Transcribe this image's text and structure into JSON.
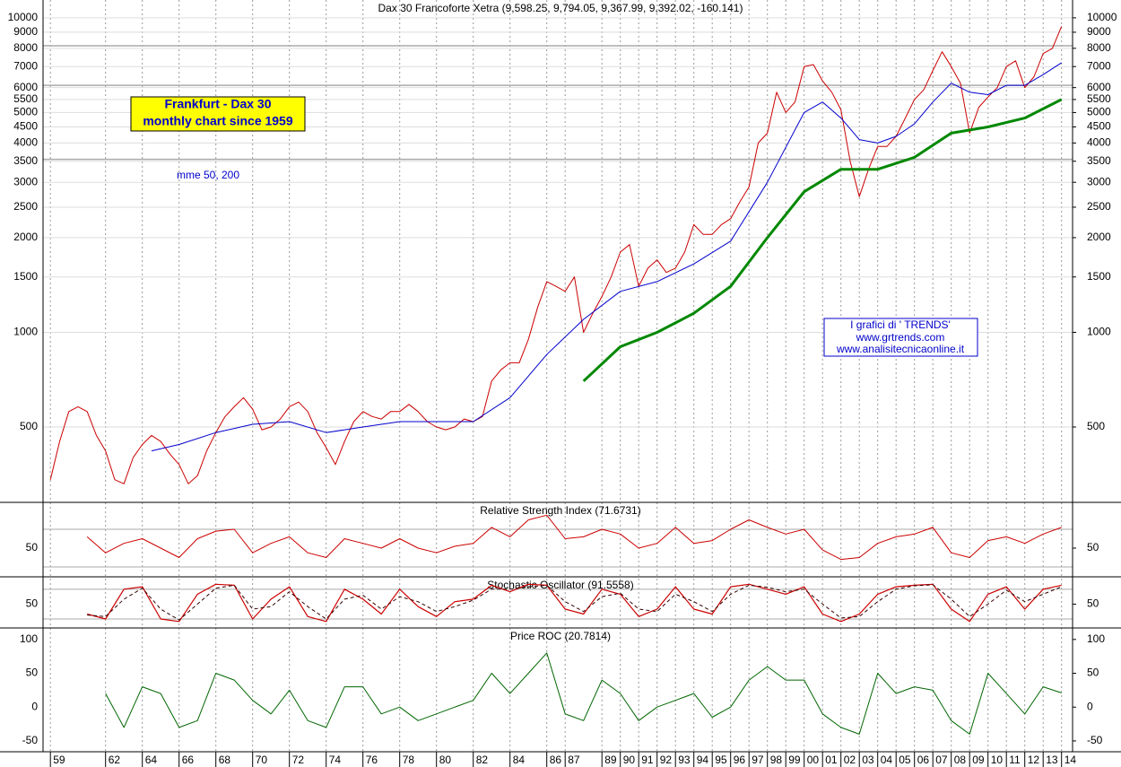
{
  "chart_data": [
    {
      "type": "line",
      "title": "Dax 30 Francoforte Xetra (9,598.25, 9,794.05, 9,367.99, 9,392.02, -160.141)",
      "log_scale": true,
      "grid": true,
      "ylim": [
        288,
        11100
      ],
      "yticks": [
        500,
        1000,
        1500,
        2000,
        2500,
        3000,
        3500,
        4000,
        4500,
        5000,
        5500,
        6000,
        7000,
        8000,
        9000,
        10000
      ],
      "levels": [
        8150,
        6100,
        3550
      ],
      "annotations": [
        "Frankfurt - Dax 30",
        "monthly  chart since 1959",
        "mme 50, 200",
        "I grafici di ' TRENDS'",
        "www.grtrends.com",
        "www.analisitecnicaonline.it"
      ],
      "series": [
        {
          "color": "#cc0000",
          "width": 1,
          "x": [
            1959,
            1959.5,
            1960,
            1960.5,
            1961,
            1961.5,
            1962,
            1962.5,
            1963,
            1963.5,
            1964,
            1964.5,
            1965,
            1965.5,
            1966,
            1966.5,
            1967,
            1967.5,
            1968,
            1968.5,
            1969,
            1969.5,
            1970,
            1970.5,
            1971,
            1971.5,
            1972,
            1972.5,
            1973,
            1973.5,
            1974,
            1974.5,
            1975,
            1975.5,
            1976,
            1976.5,
            1977,
            1977.5,
            1978,
            1978.5,
            1979,
            1979.5,
            1980,
            1980.5,
            1981,
            1981.5,
            1982,
            1982.5,
            1983,
            1983.5,
            1984,
            1984.5,
            1985,
            1985.5,
            1986,
            1986.5,
            1987,
            1987.5,
            1988,
            1988.5,
            1989,
            1989.5,
            1990,
            1990.5,
            1991,
            1991.5,
            1992,
            1992.5,
            1993,
            1993.5,
            1994,
            1994.5,
            1995,
            1995.5,
            1996,
            1996.5,
            1997,
            1997.5,
            1998,
            1998.5,
            1999,
            1999.5,
            2000,
            2000.5,
            2001,
            2001.5,
            2002,
            2002.5,
            2003,
            2003.5,
            2004,
            2004.5,
            2005,
            2005.5,
            2006,
            2006.5,
            2007,
            2007.5,
            2008,
            2008.5,
            2009,
            2009.5,
            2010,
            2010.5,
            2011,
            2011.5,
            2012,
            2012.5,
            2013,
            2013.5,
            2014
          ],
          "values": [
            340,
            450,
            560,
            580,
            560,
            470,
            420,
            340,
            330,
            400,
            440,
            470,
            450,
            410,
            380,
            330,
            350,
            420,
            480,
            540,
            580,
            620,
            570,
            490,
            500,
            530,
            580,
            600,
            560,
            480,
            430,
            380,
            450,
            520,
            560,
            540,
            530,
            560,
            560,
            590,
            560,
            520,
            500,
            490,
            500,
            530,
            520,
            540,
            700,
            760,
            800,
            800,
            950,
            1200,
            1450,
            1400,
            1350,
            1500,
            1000,
            1150,
            1300,
            1500,
            1800,
            1900,
            1400,
            1600,
            1700,
            1550,
            1600,
            1800,
            2200,
            2050,
            2050,
            2200,
            2300,
            2600,
            2900,
            4000,
            4300,
            5800,
            5000,
            5400,
            7000,
            7100,
            6300,
            5800,
            5100,
            3500,
            2700,
            3300,
            3900,
            3900,
            4200,
            4800,
            5500,
            5900,
            6800,
            7800,
            7000,
            6200,
            4300,
            5200,
            5600,
            6000,
            7000,
            7300,
            6000,
            6500,
            7700,
            8000,
            9392
          ]
        },
        {
          "color": "#0000cc",
          "width": 1,
          "x": [
            1964.5,
            1966,
            1968,
            1970,
            1972,
            1974,
            1976,
            1978,
            1980,
            1982,
            1984,
            1986,
            1988,
            1990,
            1992,
            1994,
            1996,
            1998,
            2000,
            2001,
            2002,
            2003,
            2004,
            2005,
            2006,
            2007,
            2008,
            2009,
            2010,
            2011,
            2012,
            2013,
            2014
          ],
          "values": [
            420,
            440,
            480,
            510,
            520,
            480,
            500,
            520,
            520,
            520,
            620,
            850,
            1100,
            1350,
            1450,
            1650,
            1950,
            3000,
            5000,
            5400,
            4800,
            4100,
            4000,
            4200,
            4600,
            5400,
            6200,
            5800,
            5700,
            6100,
            6100,
            6600,
            7200
          ]
        },
        {
          "color": "#008800",
          "width": 3,
          "x": [
            1988,
            1990,
            1992,
            1994,
            1996,
            1998,
            2000,
            2002,
            2004,
            2006,
            2008,
            2010,
            2012,
            2014
          ],
          "values": [
            700,
            900,
            1000,
            1150,
            1400,
            2000,
            2800,
            3300,
            3300,
            3600,
            4300,
            4500,
            4800,
            5500
          ]
        }
      ]
    },
    {
      "type": "line",
      "title": "Relative Strength Index (71.6731)",
      "ylim": [
        19.5,
        98.6
      ],
      "yticks": [
        50
      ],
      "levels": [
        30,
        70
      ],
      "series": [
        {
          "color": "#cc0000",
          "width": 1,
          "x": [
            1961,
            1962,
            1963,
            1964,
            1965,
            1966,
            1967,
            1968,
            1969,
            1970,
            1971,
            1972,
            1973,
            1974,
            1975,
            1976,
            1977,
            1978,
            1979,
            1980,
            1981,
            1982,
            1983,
            1984,
            1985,
            1986,
            1987,
            1988,
            1989,
            1990,
            1991,
            1992,
            1993,
            1994,
            1995,
            1996,
            1997,
            1998,
            1999,
            2000,
            2001,
            2002,
            2003,
            2004,
            2005,
            2006,
            2007,
            2008,
            2009,
            2010,
            2011,
            2012,
            2013,
            2014
          ],
          "values": [
            62,
            45,
            55,
            60,
            50,
            40,
            60,
            68,
            70,
            45,
            55,
            62,
            45,
            40,
            60,
            55,
            50,
            60,
            50,
            45,
            52,
            55,
            72,
            62,
            80,
            85,
            60,
            62,
            70,
            65,
            50,
            55,
            72,
            55,
            58,
            70,
            80,
            72,
            65,
            70,
            48,
            38,
            40,
            55,
            62,
            65,
            72,
            45,
            40,
            58,
            62,
            55,
            65,
            72
          ]
        }
      ]
    },
    {
      "type": "line",
      "title": "Stochastic Oscillator (91.5558)",
      "ylim": [
        2,
        105
      ],
      "yticks": [
        50
      ],
      "levels": [
        20,
        80
      ],
      "series": [
        {
          "color": "#cc0000",
          "width": 1.2,
          "x": [
            1961,
            1962,
            1963,
            1964,
            1965,
            1966,
            1967,
            1968,
            1969,
            1970,
            1971,
            1972,
            1973,
            1974,
            1975,
            1976,
            1977,
            1978,
            1979,
            1980,
            1981,
            1982,
            1983,
            1984,
            1985,
            1986,
            1987,
            1988,
            1989,
            1990,
            1991,
            1992,
            1993,
            1994,
            1995,
            1996,
            1997,
            1998,
            1999,
            2000,
            2001,
            2002,
            2003,
            2004,
            2005,
            2006,
            2007,
            2008,
            2009,
            2010,
            2011,
            2012,
            2013,
            2014
          ],
          "values": [
            30,
            20,
            80,
            85,
            20,
            15,
            70,
            90,
            88,
            20,
            60,
            85,
            25,
            15,
            80,
            60,
            30,
            80,
            45,
            25,
            55,
            60,
            88,
            75,
            90,
            88,
            40,
            30,
            80,
            70,
            25,
            40,
            85,
            40,
            30,
            85,
            90,
            80,
            70,
            85,
            30,
            15,
            30,
            70,
            85,
            88,
            90,
            40,
            15,
            70,
            85,
            40,
            80,
            88
          ]
        },
        {
          "color": "#330000",
          "width": 1,
          "dash": true,
          "x": [
            1961,
            1962,
            1963,
            1964,
            1965,
            1966,
            1967,
            1968,
            1969,
            1970,
            1971,
            1972,
            1973,
            1974,
            1975,
            1976,
            1977,
            1978,
            1979,
            1980,
            1981,
            1982,
            1983,
            1984,
            1985,
            1986,
            1987,
            1988,
            1989,
            1990,
            1991,
            1992,
            1993,
            1994,
            1995,
            1996,
            1997,
            1998,
            1999,
            2000,
            2001,
            2002,
            2003,
            2004,
            2005,
            2006,
            2007,
            2008,
            2009,
            2010,
            2011,
            2012,
            2013,
            2014
          ],
          "values": [
            28,
            25,
            60,
            82,
            40,
            18,
            50,
            82,
            88,
            40,
            45,
            75,
            45,
            20,
            60,
            68,
            40,
            65,
            55,
            35,
            45,
            58,
            80,
            80,
            85,
            88,
            55,
            35,
            65,
            72,
            40,
            35,
            70,
            55,
            35,
            70,
            88,
            84,
            75,
            80,
            50,
            22,
            25,
            55,
            80,
            87,
            89,
            60,
            25,
            50,
            78,
            55,
            70,
            85
          ]
        }
      ]
    },
    {
      "type": "line",
      "title": "Price ROC (20.7814)",
      "ylim": [
        -66,
        117
      ],
      "yticks": [
        -50,
        0,
        50,
        100
      ],
      "xlim": [
        1958.6,
        2014.6
      ],
      "xticks": [
        {
          "value": 1959,
          "label": "59"
        },
        {
          "value": 1962,
          "label": "62"
        },
        {
          "value": 1964,
          "label": "64"
        },
        {
          "value": 1966,
          "label": "66"
        },
        {
          "value": 1968,
          "label": "68"
        },
        {
          "value": 1970,
          "label": "70"
        },
        {
          "value": 1972,
          "label": "72"
        },
        {
          "value": 1974,
          "label": "74"
        },
        {
          "value": 1976,
          "label": "76"
        },
        {
          "value": 1978,
          "label": "78"
        },
        {
          "value": 1980,
          "label": "80"
        },
        {
          "value": 1982,
          "label": "82"
        },
        {
          "value": 1984,
          "label": "84"
        },
        {
          "value": 1986,
          "label": "86"
        },
        {
          "value": 1987,
          "label": "87"
        },
        {
          "value": 1989,
          "label": "89"
        },
        {
          "value": 1990,
          "label": "90"
        },
        {
          "value": 1991,
          "label": "91"
        },
        {
          "value": 1992,
          "label": "92"
        },
        {
          "value": 1993,
          "label": "93"
        },
        {
          "value": 1994,
          "label": "94"
        },
        {
          "value": 1995,
          "label": "95"
        },
        {
          "value": 1996,
          "label": "96"
        },
        {
          "value": 1997,
          "label": "97"
        },
        {
          "value": 1998,
          "label": "98"
        },
        {
          "value": 1999,
          "label": "99"
        },
        {
          "value": 2000,
          "label": "00"
        },
        {
          "value": 2001,
          "label": "01"
        },
        {
          "value": 2002,
          "label": "02"
        },
        {
          "value": 2003,
          "label": "03"
        },
        {
          "value": 2004,
          "label": "04"
        },
        {
          "value": 2005,
          "label": "05"
        },
        {
          "value": 2006,
          "label": "06"
        },
        {
          "value": 2007,
          "label": "07"
        },
        {
          "value": 2008,
          "label": "08"
        },
        {
          "value": 2009,
          "label": "09"
        },
        {
          "value": 2010,
          "label": "10"
        },
        {
          "value": 2011,
          "label": "11"
        },
        {
          "value": 2012,
          "label": "12"
        },
        {
          "value": 2013,
          "label": "13"
        },
        {
          "value": 2014,
          "label": "14"
        }
      ],
      "series": [
        {
          "color": "#006600",
          "width": 1,
          "x": [
            1962,
            1963,
            1964,
            1965,
            1966,
            1967,
            1968,
            1969,
            1970,
            1971,
            1972,
            1973,
            1974,
            1975,
            1976,
            1977,
            1978,
            1979,
            1980,
            1981,
            1982,
            1983,
            1984,
            1985,
            1986,
            1987,
            1988,
            1989,
            1990,
            1991,
            1992,
            1993,
            1994,
            1995,
            1996,
            1997,
            1998,
            1999,
            2000,
            2001,
            2002,
            2003,
            2004,
            2005,
            2006,
            2007,
            2008,
            2009,
            2010,
            2011,
            2012,
            2013,
            2014
          ],
          "values": [
            20,
            -30,
            30,
            20,
            -30,
            -20,
            50,
            40,
            10,
            -10,
            25,
            -20,
            -30,
            30,
            30,
            -10,
            0,
            -20,
            -10,
            0,
            10,
            50,
            20,
            50,
            80,
            -10,
            -20,
            40,
            20,
            -20,
            0,
            10,
            20,
            -15,
            0,
            40,
            60,
            40,
            40,
            -10,
            -30,
            -40,
            50,
            20,
            30,
            25,
            -20,
            -40,
            50,
            20,
            -10,
            30,
            21
          ]
        }
      ]
    }
  ]
}
